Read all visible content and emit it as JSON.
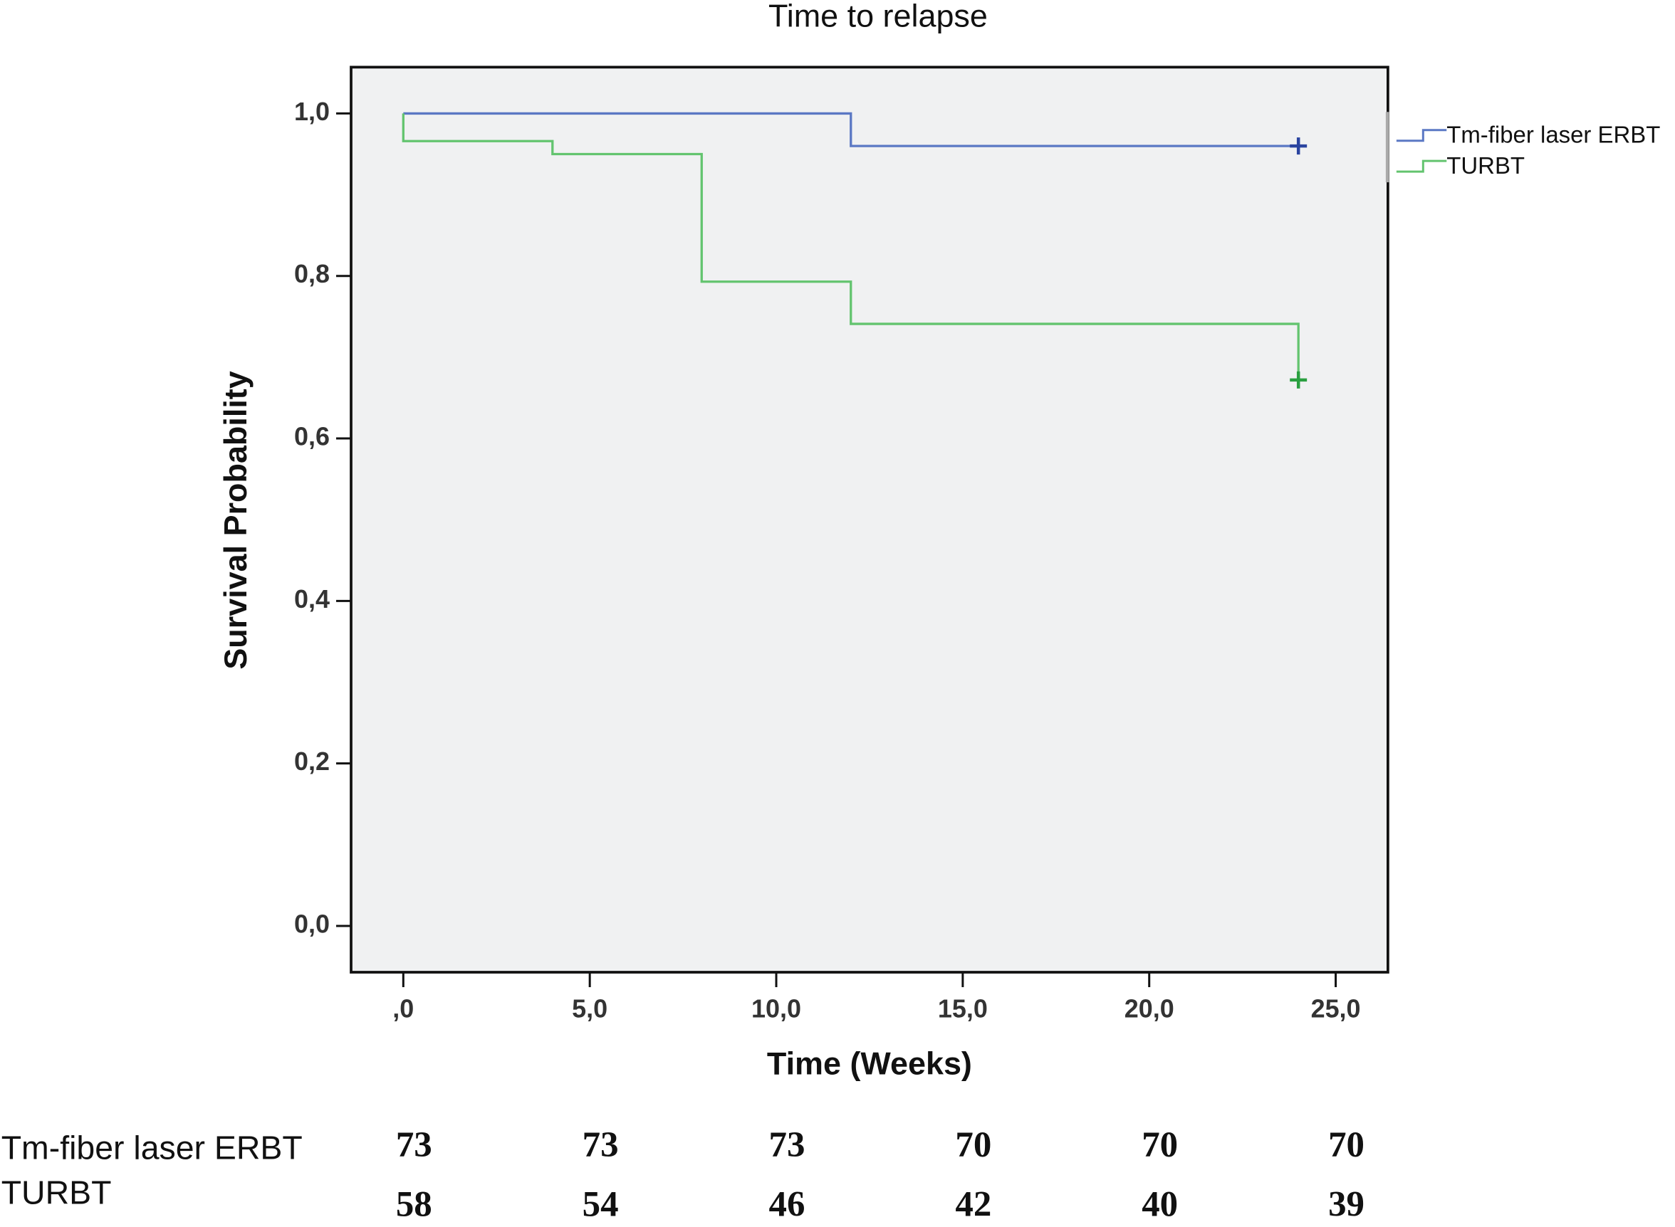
{
  "chart_data": {
    "type": "step",
    "title": "Time to relapse",
    "x_label": "Time (Weeks)",
    "y_label": "Survival Probability",
    "xlim": [
      -1.4,
      26.4
    ],
    "ylim": [
      -0.057,
      1.057
    ],
    "xticks": [
      {
        "value": 0,
        "label": ",0"
      },
      {
        "value": 5,
        "label": "5,0"
      },
      {
        "value": 10,
        "label": "10,0"
      },
      {
        "value": 15,
        "label": "15,0"
      },
      {
        "value": 20,
        "label": "20,0"
      },
      {
        "value": 25,
        "label": "25,0"
      }
    ],
    "yticks": [
      {
        "value": 0,
        "label": "0,0"
      },
      {
        "value": 0.2,
        "label": "0,2"
      },
      {
        "value": 0.4,
        "label": "0,4"
      },
      {
        "value": 0.6,
        "label": "0,6"
      },
      {
        "value": 0.8,
        "label": "0,8"
      },
      {
        "value": 1.0,
        "label": "1,0"
      }
    ],
    "series": [
      {
        "name": "Tm-fiber laser ERBT",
        "color": "#5b78c4",
        "censor_color": "#2a44a0",
        "x": [
          0,
          12,
          24
        ],
        "values": [
          1.0,
          0.96,
          0.96
        ],
        "censored_x": [
          24
        ],
        "censored_values": [
          0.96
        ]
      },
      {
        "name": "TURBT",
        "color": "#63c46f",
        "censor_color": "#2aa040",
        "x": [
          0,
          0,
          4,
          8,
          12,
          24
        ],
        "values": [
          1.0,
          0.966,
          0.95,
          0.793,
          0.741,
          0.672
        ],
        "censored_x": [
          24
        ],
        "censored_values": [
          0.672
        ]
      }
    ],
    "risk_table": [
      {
        "name": "Tm-fiber laser ERBT",
        "counts": [
          73,
          73,
          73,
          70,
          70,
          70
        ]
      },
      {
        "name": "TURBT",
        "counts": [
          58,
          54,
          46,
          42,
          40,
          39
        ]
      }
    ]
  }
}
